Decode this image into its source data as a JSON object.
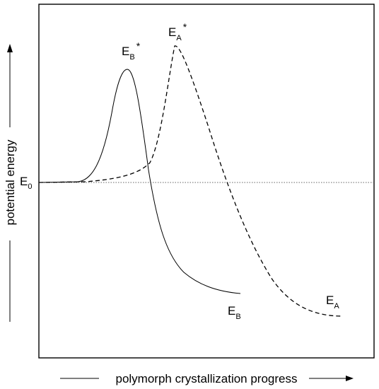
{
  "chart_data": {
    "type": "line",
    "xlabel": "polymorph crystallization progress",
    "ylabel": "potential energy",
    "reference_level": {
      "label": "E",
      "subscript": "0",
      "style": "dotted"
    },
    "series": [
      {
        "id": "B",
        "style": "solid",
        "transition_state_label": {
          "main": "E",
          "sub": "B",
          "sup": "*"
        },
        "final_state_label": {
          "main": "E",
          "sub": "B"
        },
        "start_energy_relative": 0,
        "peak_energy_relative": 0.62,
        "final_energy_relative": -0.61
      },
      {
        "id": "A",
        "style": "dashed",
        "transition_state_label": {
          "main": "E",
          "sub": "A",
          "sup": "*"
        },
        "final_state_label": {
          "main": "E",
          "sub": "A"
        },
        "start_energy_relative": 0,
        "peak_energy_relative": 0.75,
        "final_energy_relative": -0.74
      }
    ]
  }
}
